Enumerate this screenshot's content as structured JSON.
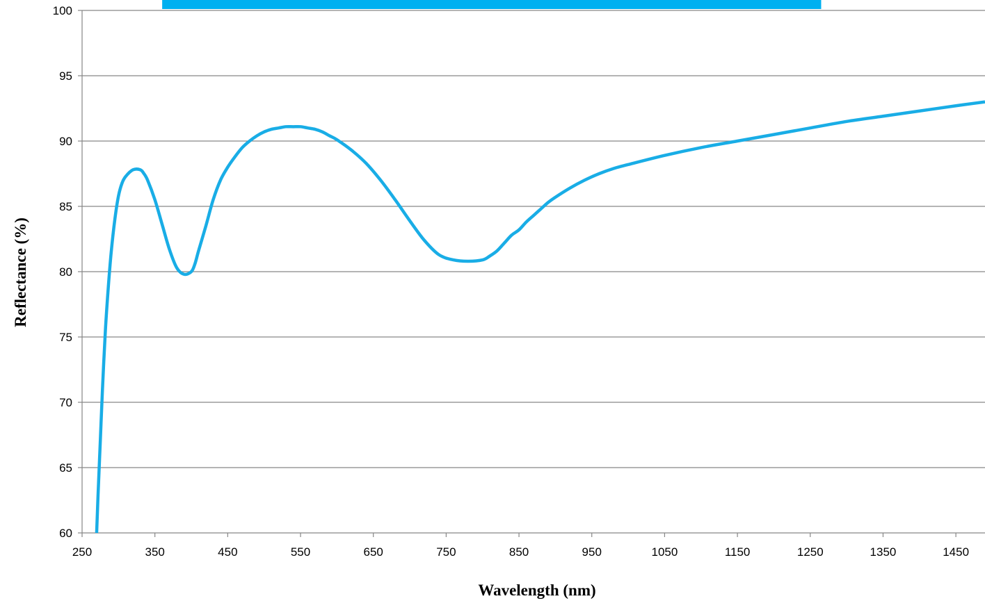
{
  "chart_data": {
    "type": "line",
    "title": "",
    "xlabel": "Wavelength (nm)",
    "ylabel": "Reflectance (%)",
    "xlim": [
      250,
      1490
    ],
    "ylim": [
      60,
      100
    ],
    "x_ticks": [
      250,
      350,
      450,
      550,
      650,
      750,
      850,
      950,
      1050,
      1150,
      1250,
      1350,
      1450
    ],
    "y_ticks": [
      60,
      65,
      70,
      75,
      80,
      85,
      90,
      95,
      100
    ],
    "x_tick_labels": [
      "250",
      "350",
      "450",
      "550",
      "650",
      "750",
      "850",
      "950",
      "1050",
      "1150",
      "1250",
      "1350",
      "1450"
    ],
    "y_tick_labels": [
      "60",
      "65",
      "70",
      "75",
      "80",
      "85",
      "90",
      "95",
      "100"
    ],
    "grid": "horizontal",
    "legend": "none",
    "colors": {
      "series": "#19ADE6",
      "highlight_bar": "#00B0F0",
      "grid": "#868686"
    },
    "highlight_band": {
      "x_start": 360,
      "x_end": 1265
    },
    "series": [
      {
        "color": "#19ADE6",
        "x": [
          270,
          272,
          275,
          278,
          282,
          286,
          290,
          295,
          300,
          305,
          310,
          320,
          330,
          335,
          340,
          350,
          360,
          370,
          380,
          390,
          400,
          405,
          410,
          420,
          430,
          440,
          450,
          460,
          470,
          480,
          490,
          500,
          510,
          520,
          530,
          540,
          550,
          560,
          570,
          580,
          590,
          600,
          620,
          640,
          660,
          680,
          700,
          720,
          740,
          760,
          780,
          800,
          810,
          820,
          830,
          840,
          850,
          860,
          870,
          880,
          890,
          900,
          920,
          940,
          960,
          980,
          1000,
          1050,
          1100,
          1150,
          1200,
          1250,
          1300,
          1350,
          1400,
          1450,
          1490
        ],
        "y": [
          60.0,
          63.0,
          67.0,
          71.0,
          75.5,
          78.8,
          81.5,
          84.0,
          85.8,
          86.8,
          87.3,
          87.8,
          87.8,
          87.5,
          87.0,
          85.5,
          83.6,
          81.7,
          80.3,
          79.8,
          80.0,
          80.6,
          81.6,
          83.5,
          85.5,
          87.0,
          88.0,
          88.8,
          89.5,
          90.0,
          90.4,
          90.7,
          90.9,
          91.0,
          91.1,
          91.1,
          91.1,
          91.0,
          90.9,
          90.7,
          90.4,
          90.1,
          89.3,
          88.3,
          87.0,
          85.5,
          83.9,
          82.4,
          81.3,
          80.9,
          80.8,
          80.9,
          81.2,
          81.6,
          82.2,
          82.8,
          83.2,
          83.8,
          84.3,
          84.8,
          85.3,
          85.7,
          86.4,
          87.0,
          87.5,
          87.9,
          88.2,
          88.9,
          89.5,
          90.0,
          90.5,
          91.0,
          91.5,
          91.9,
          92.3,
          92.7,
          93.0
        ]
      }
    ]
  }
}
